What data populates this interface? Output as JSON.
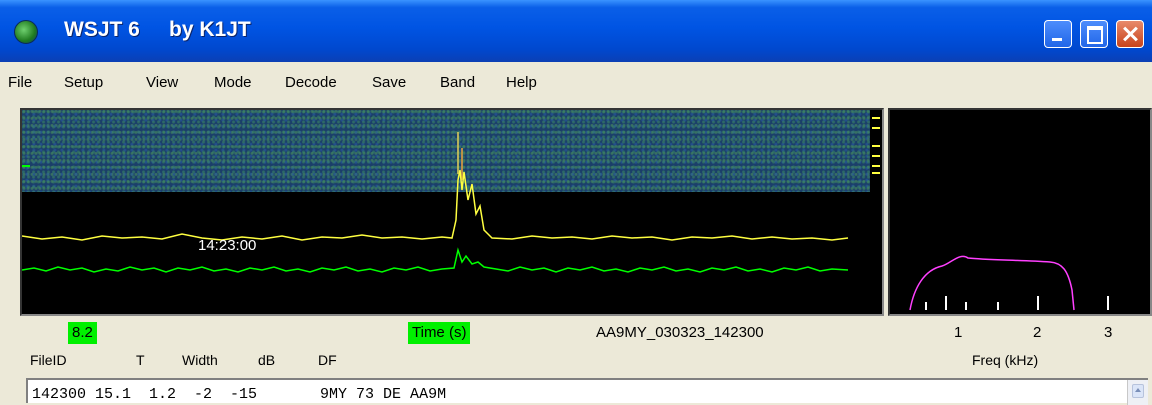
{
  "window": {
    "title": "WSJT 6     by K1JT"
  },
  "menu": [
    "File",
    "Setup",
    "View",
    "Mode",
    "Decode",
    "Save",
    "Band",
    "Help"
  ],
  "waterfall": {
    "time_marker": "14:23:00"
  },
  "status": {
    "level": "8.2",
    "time_axis_label": "Time (s)",
    "file_name": "AA9MY_030323_142300"
  },
  "spectrum": {
    "freq_ticks": [
      "1",
      "2",
      "3"
    ],
    "freq_axis_label": "Freq (kHz)"
  },
  "columns": [
    "FileID",
    "T",
    "Width",
    "dB",
    "DF"
  ],
  "decoded_text": "142300 15.1  1.2  -2  -15       9MY 73 DE AA9M",
  "colors": {
    "titlebar": "#0054E3",
    "accent_green": "#00F000",
    "trace_yellow": "#FFFF40",
    "trace_green": "#00FF00",
    "trace_magenta": "#FF40FF"
  },
  "icons": {
    "app": "globe-icon",
    "minimize": "minimize-icon",
    "maximize": "maximize-icon",
    "close": "close-icon",
    "scroll_up": "scroll-up-icon"
  }
}
